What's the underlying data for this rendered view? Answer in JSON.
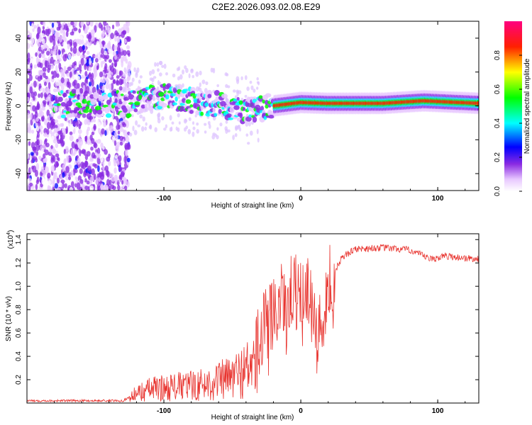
{
  "title": "C2E2.2026.093.02.08.E29",
  "chart_data": [
    {
      "type": "heatmap",
      "title": "",
      "xlabel": "Height of straight line (km)",
      "ylabel": "Frequency (Hz)",
      "xlim": [
        -200,
        130
      ],
      "ylim": [
        -50,
        50
      ],
      "xticks": [
        -100,
        0,
        100
      ],
      "yticks": [
        -40,
        -20,
        0,
        20,
        40
      ],
      "colorbar": {
        "label": "Normalized spectral amplitude",
        "range": [
          0,
          1
        ],
        "ticks": [
          0.0,
          0.2,
          0.4,
          0.6,
          0.8
        ],
        "colormap": "rainbow (white-purple-blue-cyan-green-yellow-red-magenta)"
      },
      "features": {
        "noise_region_x": [
          -200,
          -125
        ],
        "signal_center_hz": [
          {
            "x": -120,
            "f": 3
          },
          {
            "x": -100,
            "f": 6
          },
          {
            "x": -80,
            "f": 3
          },
          {
            "x": -60,
            "f": 1
          },
          {
            "x": -40,
            "f": -3
          },
          {
            "x": -20,
            "f": 0
          },
          {
            "x": 0,
            "f": 2
          },
          {
            "x": 20,
            "f": 1.5
          },
          {
            "x": 60,
            "f": 1.5
          },
          {
            "x": 90,
            "f": 3
          },
          {
            "x": 130,
            "f": 1.5
          }
        ],
        "strong_band_x": [
          -20,
          130
        ]
      }
    },
    {
      "type": "line",
      "title": "",
      "xlabel": "Height of straight line (km)",
      "ylabel": "SNR (10 * v/v)",
      "yscale_label": "(x10",
      "yscale_exp": "4",
      "yscale_close": ")",
      "xlim": [
        -200,
        130
      ],
      "ylim": [
        0,
        1.45
      ],
      "xticks": [
        -100,
        0,
        100
      ],
      "yticks": [
        0.2,
        0.4,
        0.6,
        0.8,
        1.0,
        1.2,
        1.4
      ],
      "series": [
        {
          "name": "SNR",
          "color": "#e8332e",
          "envelope": [
            {
              "x": -200,
              "y": 0.02
            },
            {
              "x": -130,
              "y": 0.02
            },
            {
              "x": -120,
              "y": 0.08
            },
            {
              "x": -110,
              "y": 0.12
            },
            {
              "x": -90,
              "y": 0.14
            },
            {
              "x": -70,
              "y": 0.16
            },
            {
              "x": -50,
              "y": 0.22
            },
            {
              "x": -35,
              "y": 0.32
            },
            {
              "x": -25,
              "y": 0.7
            },
            {
              "x": -15,
              "y": 0.85
            },
            {
              "x": -5,
              "y": 0.95
            },
            {
              "x": 5,
              "y": 1.0
            },
            {
              "x": 12,
              "y": 0.45
            },
            {
              "x": 20,
              "y": 1.0
            },
            {
              "x": 30,
              "y": 1.25
            },
            {
              "x": 40,
              "y": 1.32
            },
            {
              "x": 60,
              "y": 1.33
            },
            {
              "x": 80,
              "y": 1.31
            },
            {
              "x": 95,
              "y": 1.23
            },
            {
              "x": 105,
              "y": 1.26
            },
            {
              "x": 130,
              "y": 1.23
            }
          ]
        }
      ]
    }
  ]
}
